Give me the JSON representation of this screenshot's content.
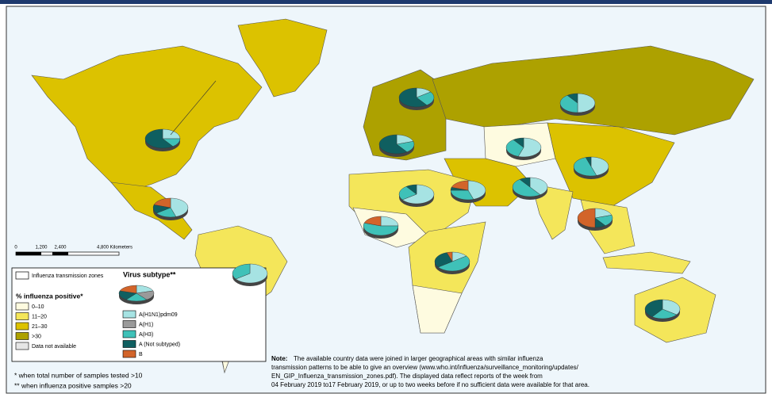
{
  "scale_bar": {
    "labels": [
      "0",
      "1,200",
      "2,400",
      "4,800 Kilometers"
    ]
  },
  "legend": {
    "zones_title": "Influenza transmission zones",
    "subtype_title": "Virus subtype**",
    "positive_title": "% influenza positive*",
    "positive_classes": [
      {
        "label": "0–10",
        "color": "#fefbe0"
      },
      {
        "label": "11–20",
        "color": "#f4e65a"
      },
      {
        "label": "21–30",
        "color": "#dcc200"
      },
      {
        "label": ">30",
        "color": "#ada100"
      },
      {
        "label": "Data not available",
        "color": "#e6e6e6"
      }
    ],
    "subtypes": [
      {
        "label": "A(H1N1)pdm09",
        "color": "#a6e3e3"
      },
      {
        "label": "A(H1)",
        "color": "#9a9a9a"
      },
      {
        "label": "A(H3)",
        "color": "#3fc1b8"
      },
      {
        "label": "A (Not subtyped)",
        "color": "#0f5f60"
      },
      {
        "label": "B",
        "color": "#d2642a"
      }
    ]
  },
  "footnotes": [
    "* when total number of samples tested >10",
    "** when influenza positive samples >20"
  ],
  "note": {
    "label": "Note:",
    "lines": [
      "The available country data were joined in larger geographical areas with similar influenza",
      "transmission patterns to be able to give an overview (www.who.int/influenza/surveillance_monitoring/updates/",
      "EN_GIP_Influenza_transmission_zones.pdf). The displayed data reflect reports of the week from",
      "04 February 2019 to17 February 2019, or up to two weeks before if no sufficient data were available for that area."
    ]
  },
  "pies": [
    {
      "values": [
        25,
        0,
        15,
        60,
        0
      ]
    },
    {
      "values": [
        45,
        0,
        20,
        15,
        20
      ]
    },
    {
      "values": [
        15,
        0,
        25,
        60,
        0
      ]
    },
    {
      "values": [
        20,
        0,
        20,
        60,
        0
      ]
    },
    {
      "values": [
        50,
        0,
        40,
        10,
        0
      ]
    },
    {
      "values": [
        55,
        0,
        35,
        10,
        0
      ]
    },
    {
      "values": [
        45,
        0,
        50,
        5,
        0
      ]
    },
    {
      "values": [
        45,
        0,
        30,
        5,
        20
      ]
    },
    {
      "values": [
        65,
        0,
        25,
        10,
        0
      ]
    },
    {
      "values": [
        40,
        0,
        50,
        10,
        0
      ]
    },
    {
      "values": [
        20,
        0,
        20,
        10,
        50
      ]
    },
    {
      "values": [
        25,
        0,
        55,
        0,
        20
      ]
    },
    {
      "values": [
        15,
        0,
        50,
        30,
        5
      ]
    },
    {
      "values": [
        65,
        0,
        35,
        0,
        0
      ]
    },
    {
      "values": [
        35,
        0,
        25,
        40,
        0
      ]
    }
  ]
}
